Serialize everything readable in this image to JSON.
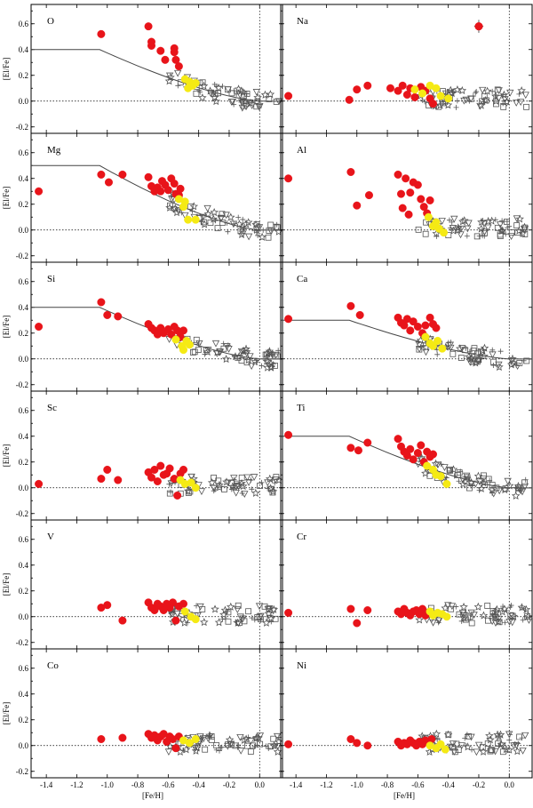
{
  "chart_data": {
    "type": "scatter",
    "layout": "6 rows x 2 columns",
    "xlabel": "[Fe/H]",
    "ylabel": "[El/Fe]",
    "xlim": [
      -1.5,
      0.15
    ],
    "x_ticks": [
      -1.4,
      -1.2,
      -1.0,
      -0.8,
      -0.6,
      -0.4,
      -0.2,
      0.0
    ],
    "x_tick_labels": [
      "-1.4",
      "-1.2",
      "-1.0",
      "-0.8",
      "-0.6",
      "-0.4",
      "-0.2",
      "0.0"
    ],
    "ylim": [
      -0.25,
      0.75
    ],
    "y_ticks": [
      -0.2,
      0.0,
      0.2,
      0.4,
      0.6
    ],
    "y_tick_labels": [
      "-0.2",
      "0.0",
      "0.2",
      "0.4",
      "0.6"
    ],
    "reference_lines": {
      "y": 0.0,
      "x": 0.0
    },
    "series_legend": [
      {
        "name": "red filled circles",
        "color": "#e8141a"
      },
      {
        "name": "yellow filled circles",
        "color": "#f5ea14"
      },
      {
        "name": "comparison stars",
        "markers": [
          "open triangles",
          "open squares",
          "open stars",
          "crosses"
        ]
      }
    ],
    "error_bar": {
      "panel": "Na",
      "x": -0.2,
      "y": 0.58,
      "xerr": 0.03,
      "yerr": 0.05
    },
    "panels": [
      {
        "element": "O",
        "model_plateau": 0.4,
        "model_knee": -1.05,
        "red": [
          [
            -1.04,
            0.52
          ],
          [
            -0.73,
            0.58
          ],
          [
            -0.71,
            0.46
          ],
          [
            -0.71,
            0.43
          ],
          [
            -0.65,
            0.39
          ],
          [
            -0.62,
            0.32
          ],
          [
            -0.56,
            0.41
          ],
          [
            -0.56,
            0.38
          ],
          [
            -0.55,
            0.32
          ],
          [
            -0.53,
            0.27
          ]
        ],
        "yellow": [
          [
            -0.49,
            0.17
          ],
          [
            -0.46,
            0.15
          ],
          [
            -0.44,
            0.12
          ],
          [
            -0.47,
            0.1
          ],
          [
            -0.42,
            0.14
          ]
        ]
      },
      {
        "element": "Na",
        "model_plateau": null,
        "model_knee": null,
        "red": [
          [
            -1.45,
            0.04
          ],
          [
            -1.05,
            0.01
          ],
          [
            -1.0,
            0.09
          ],
          [
            -0.93,
            0.12
          ],
          [
            -0.78,
            0.1
          ],
          [
            -0.73,
            0.08
          ],
          [
            -0.7,
            0.12
          ],
          [
            -0.67,
            0.05
          ],
          [
            -0.65,
            0.1
          ],
          [
            -0.62,
            0.03
          ],
          [
            -0.58,
            0.11
          ],
          [
            -0.55,
            0.08
          ],
          [
            -0.52,
            0.02
          ],
          [
            -0.5,
            -0.02
          ],
          [
            -0.2,
            0.58
          ]
        ],
        "yellow": [
          [
            -0.62,
            0.09
          ],
          [
            -0.57,
            0.06
          ],
          [
            -0.52,
            0.12
          ],
          [
            -0.48,
            0.1
          ],
          [
            -0.45,
            0.04
          ],
          [
            -0.4,
            0.02
          ]
        ]
      },
      {
        "element": "Mg",
        "model_plateau": 0.5,
        "model_knee": -1.05,
        "red": [
          [
            -1.45,
            0.3
          ],
          [
            -1.04,
            0.43
          ],
          [
            -0.99,
            0.37
          ],
          [
            -0.9,
            0.43
          ],
          [
            -0.73,
            0.41
          ],
          [
            -0.71,
            0.34
          ],
          [
            -0.69,
            0.3
          ],
          [
            -0.67,
            0.33
          ],
          [
            -0.65,
            0.3
          ],
          [
            -0.64,
            0.38
          ],
          [
            -0.62,
            0.35
          ],
          [
            -0.6,
            0.31
          ],
          [
            -0.58,
            0.4
          ],
          [
            -0.56,
            0.36
          ],
          [
            -0.55,
            0.28
          ],
          [
            -0.53,
            0.27
          ],
          [
            -0.52,
            0.32
          ]
        ],
        "yellow": [
          [
            -0.53,
            0.24
          ],
          [
            -0.5,
            0.18
          ],
          [
            -0.49,
            0.22
          ],
          [
            -0.47,
            0.08
          ],
          [
            -0.42,
            0.08
          ]
        ]
      },
      {
        "element": "Al",
        "model_plateau": null,
        "model_knee": null,
        "red": [
          [
            -1.45,
            0.4
          ],
          [
            -1.04,
            0.45
          ],
          [
            -1.0,
            0.19
          ],
          [
            -0.92,
            0.27
          ],
          [
            -0.73,
            0.43
          ],
          [
            -0.71,
            0.28
          ],
          [
            -0.7,
            0.17
          ],
          [
            -0.68,
            0.4
          ],
          [
            -0.66,
            0.12
          ],
          [
            -0.65,
            0.29
          ],
          [
            -0.63,
            0.37
          ],
          [
            -0.6,
            0.35
          ],
          [
            -0.58,
            0.24
          ],
          [
            -0.56,
            0.18
          ],
          [
            -0.54,
            0.13
          ],
          [
            -0.52,
            0.23
          ]
        ],
        "yellow": [
          [
            -0.53,
            0.1
          ],
          [
            -0.5,
            0.03
          ],
          [
            -0.48,
            0.06
          ],
          [
            -0.46,
            0.01
          ],
          [
            -0.43,
            -0.02
          ]
        ]
      },
      {
        "element": "Si",
        "model_plateau": 0.4,
        "model_knee": -1.05,
        "red": [
          [
            -1.45,
            0.25
          ],
          [
            -1.04,
            0.44
          ],
          [
            -1.0,
            0.34
          ],
          [
            -0.93,
            0.33
          ],
          [
            -0.73,
            0.27
          ],
          [
            -0.71,
            0.24
          ],
          [
            -0.69,
            0.22
          ],
          [
            -0.67,
            0.19
          ],
          [
            -0.65,
            0.24
          ],
          [
            -0.63,
            0.2
          ],
          [
            -0.6,
            0.23
          ],
          [
            -0.58,
            0.19
          ],
          [
            -0.56,
            0.25
          ],
          [
            -0.54,
            0.22
          ],
          [
            -0.52,
            0.17
          ],
          [
            -0.5,
            0.22
          ]
        ],
        "yellow": [
          [
            -0.55,
            0.15
          ],
          [
            -0.51,
            0.1
          ],
          [
            -0.5,
            0.07
          ],
          [
            -0.48,
            0.14
          ],
          [
            -0.46,
            0.11
          ]
        ]
      },
      {
        "element": "Ca",
        "model_plateau": 0.3,
        "model_knee": -1.05,
        "red": [
          [
            -1.45,
            0.31
          ],
          [
            -1.04,
            0.41
          ],
          [
            -0.98,
            0.34
          ],
          [
            -0.73,
            0.32
          ],
          [
            -0.71,
            0.28
          ],
          [
            -0.69,
            0.26
          ],
          [
            -0.67,
            0.31
          ],
          [
            -0.65,
            0.22
          ],
          [
            -0.63,
            0.29
          ],
          [
            -0.6,
            0.25
          ],
          [
            -0.57,
            0.2
          ],
          [
            -0.55,
            0.26
          ],
          [
            -0.52,
            0.32
          ],
          [
            -0.5,
            0.27
          ],
          [
            -0.48,
            0.24
          ]
        ],
        "yellow": [
          [
            -0.55,
            0.17
          ],
          [
            -0.52,
            0.12
          ],
          [
            -0.5,
            0.1
          ],
          [
            -0.47,
            0.14
          ],
          [
            -0.44,
            0.08
          ]
        ]
      },
      {
        "element": "Sc",
        "model_plateau": null,
        "model_knee": null,
        "red": [
          [
            -1.45,
            0.03
          ],
          [
            -1.04,
            0.07
          ],
          [
            -1.0,
            0.14
          ],
          [
            -0.93,
            0.06
          ],
          [
            -0.73,
            0.12
          ],
          [
            -0.71,
            0.08
          ],
          [
            -0.69,
            0.14
          ],
          [
            -0.67,
            0.05
          ],
          [
            -0.65,
            0.17
          ],
          [
            -0.63,
            0.1
          ],
          [
            -0.61,
            0.11
          ],
          [
            -0.59,
            0.15
          ],
          [
            -0.56,
            0.07
          ],
          [
            -0.54,
            -0.06
          ],
          [
            -0.52,
            0.11
          ],
          [
            -0.5,
            0.14
          ]
        ],
        "yellow": [
          [
            -0.52,
            0.06
          ],
          [
            -0.49,
            0.03
          ],
          [
            -0.45,
            0.04
          ],
          [
            -0.42,
            0.0
          ]
        ]
      },
      {
        "element": "Ti",
        "model_plateau": 0.4,
        "model_knee": -1.05,
        "red": [
          [
            -1.45,
            0.41
          ],
          [
            -1.04,
            0.31
          ],
          [
            -0.99,
            0.29
          ],
          [
            -0.93,
            0.35
          ],
          [
            -0.73,
            0.38
          ],
          [
            -0.71,
            0.32
          ],
          [
            -0.69,
            0.28
          ],
          [
            -0.67,
            0.25
          ],
          [
            -0.65,
            0.3
          ],
          [
            -0.63,
            0.22
          ],
          [
            -0.6,
            0.27
          ],
          [
            -0.58,
            0.33
          ],
          [
            -0.56,
            0.2
          ],
          [
            -0.54,
            0.28
          ],
          [
            -0.52,
            0.24
          ],
          [
            -0.5,
            0.26
          ]
        ],
        "yellow": [
          [
            -0.54,
            0.17
          ],
          [
            -0.5,
            0.14
          ],
          [
            -0.48,
            0.1
          ],
          [
            -0.45,
            0.09
          ],
          [
            -0.41,
            0.03
          ]
        ]
      },
      {
        "element": "V",
        "model_plateau": null,
        "model_knee": null,
        "red": [
          [
            -1.04,
            0.07
          ],
          [
            -1.0,
            0.09
          ],
          [
            -0.9,
            -0.03
          ],
          [
            -0.73,
            0.11
          ],
          [
            -0.71,
            0.07
          ],
          [
            -0.69,
            0.05
          ],
          [
            -0.67,
            0.1
          ],
          [
            -0.65,
            0.08
          ],
          [
            -0.63,
            0.05
          ],
          [
            -0.61,
            0.1
          ],
          [
            -0.59,
            0.07
          ],
          [
            -0.57,
            0.11
          ],
          [
            -0.55,
            -0.03
          ],
          [
            -0.53,
            0.08
          ],
          [
            -0.5,
            0.1
          ]
        ],
        "yellow": [
          [
            -0.49,
            0.04
          ],
          [
            -0.45,
            0.0
          ],
          [
            -0.42,
            -0.02
          ]
        ]
      },
      {
        "element": "Cr",
        "model_plateau": null,
        "model_knee": null,
        "red": [
          [
            -1.45,
            0.03
          ],
          [
            -1.04,
            0.06
          ],
          [
            -1.0,
            -0.05
          ],
          [
            -0.93,
            0.05
          ],
          [
            -0.73,
            0.04
          ],
          [
            -0.71,
            0.02
          ],
          [
            -0.69,
            0.06
          ],
          [
            -0.67,
            0.03
          ],
          [
            -0.65,
            0.01
          ],
          [
            -0.63,
            0.04
          ],
          [
            -0.61,
            0.05
          ],
          [
            -0.59,
            0.02
          ],
          [
            -0.57,
            0.06
          ],
          [
            -0.55,
            0.01
          ],
          [
            -0.53,
            0.03
          ]
        ],
        "yellow": [
          [
            -0.52,
            0.04
          ],
          [
            -0.5,
            0.01
          ],
          [
            -0.47,
            0.03
          ],
          [
            -0.44,
            0.02
          ],
          [
            -0.41,
            0.0
          ]
        ]
      },
      {
        "element": "Co",
        "model_plateau": null,
        "model_knee": null,
        "red": [
          [
            -1.04,
            0.05
          ],
          [
            -0.9,
            0.06
          ],
          [
            -0.73,
            0.09
          ],
          [
            -0.71,
            0.06
          ],
          [
            -0.69,
            0.08
          ],
          [
            -0.67,
            0.04
          ],
          [
            -0.65,
            0.07
          ],
          [
            -0.63,
            0.09
          ],
          [
            -0.61,
            0.03
          ],
          [
            -0.59,
            0.07
          ],
          [
            -0.57,
            0.05
          ],
          [
            -0.55,
            -0.02
          ],
          [
            -0.53,
            0.07
          ]
        ],
        "yellow": [
          [
            -0.5,
            0.04
          ],
          [
            -0.46,
            0.02
          ],
          [
            -0.42,
            0.05
          ]
        ]
      },
      {
        "element": "Ni",
        "model_plateau": null,
        "model_knee": null,
        "red": [
          [
            -1.45,
            0.01
          ],
          [
            -1.04,
            0.05
          ],
          [
            -1.0,
            0.02
          ],
          [
            -0.93,
            0.0
          ],
          [
            -0.73,
            0.03
          ],
          [
            -0.71,
            0.0
          ],
          [
            -0.69,
            0.02
          ],
          [
            -0.67,
            0.01
          ],
          [
            -0.65,
            0.04
          ],
          [
            -0.63,
            0.02
          ],
          [
            -0.61,
            0.0
          ],
          [
            -0.59,
            0.03
          ],
          [
            -0.57,
            0.01
          ],
          [
            -0.55,
            0.04
          ],
          [
            -0.53,
            0.02
          ],
          [
            -0.51,
            0.05
          ]
        ],
        "yellow": [
          [
            -0.52,
            0.0
          ],
          [
            -0.48,
            -0.02
          ],
          [
            -0.45,
            0.01
          ],
          [
            -0.42,
            -0.03
          ]
        ]
      }
    ]
  }
}
